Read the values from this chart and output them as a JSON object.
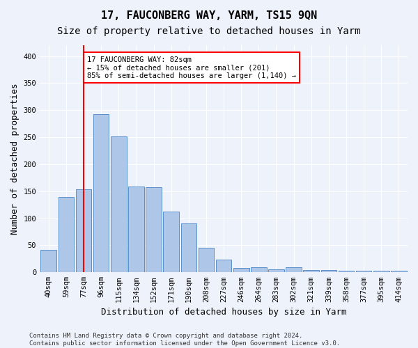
{
  "title": "17, FAUCONBERG WAY, YARM, TS15 9QN",
  "subtitle": "Size of property relative to detached houses in Yarm",
  "xlabel": "Distribution of detached houses by size in Yarm",
  "ylabel": "Number of detached properties",
  "categories": [
    "40sqm",
    "59sqm",
    "77sqm",
    "96sqm",
    "115sqm",
    "134sqm",
    "152sqm",
    "171sqm",
    "190sqm",
    "208sqm",
    "227sqm",
    "246sqm",
    "264sqm",
    "283sqm",
    "302sqm",
    "321sqm",
    "339sqm",
    "358sqm",
    "377sqm",
    "395sqm",
    "414sqm"
  ],
  "bar_heights": [
    41,
    140,
    153,
    292,
    251,
    159,
    158,
    112,
    91,
    46,
    23,
    8,
    10,
    5,
    9,
    4,
    4,
    3,
    3,
    3,
    3
  ],
  "bar_color": "#aec6e8",
  "bar_edge_color": "#5b8fc9",
  "red_line_index": 2,
  "annotation_line1": "17 FAUCONBERG WAY: 82sqm",
  "annotation_line2": "← 15% of detached houses are smaller (201)",
  "annotation_line3": "85% of semi-detached houses are larger (1,140) →",
  "annotation_box_color": "white",
  "annotation_box_edge": "red",
  "ylim": [
    0,
    420
  ],
  "yticks": [
    0,
    50,
    100,
    150,
    200,
    250,
    300,
    350,
    400
  ],
  "footer": "Contains HM Land Registry data © Crown copyright and database right 2024.\nContains public sector information licensed under the Open Government Licence v3.0.",
  "background_color": "#eef2fb",
  "grid_color": "#ffffff",
  "title_fontsize": 11,
  "subtitle_fontsize": 10,
  "axis_label_fontsize": 9,
  "tick_fontsize": 7.5,
  "footer_fontsize": 6.5
}
